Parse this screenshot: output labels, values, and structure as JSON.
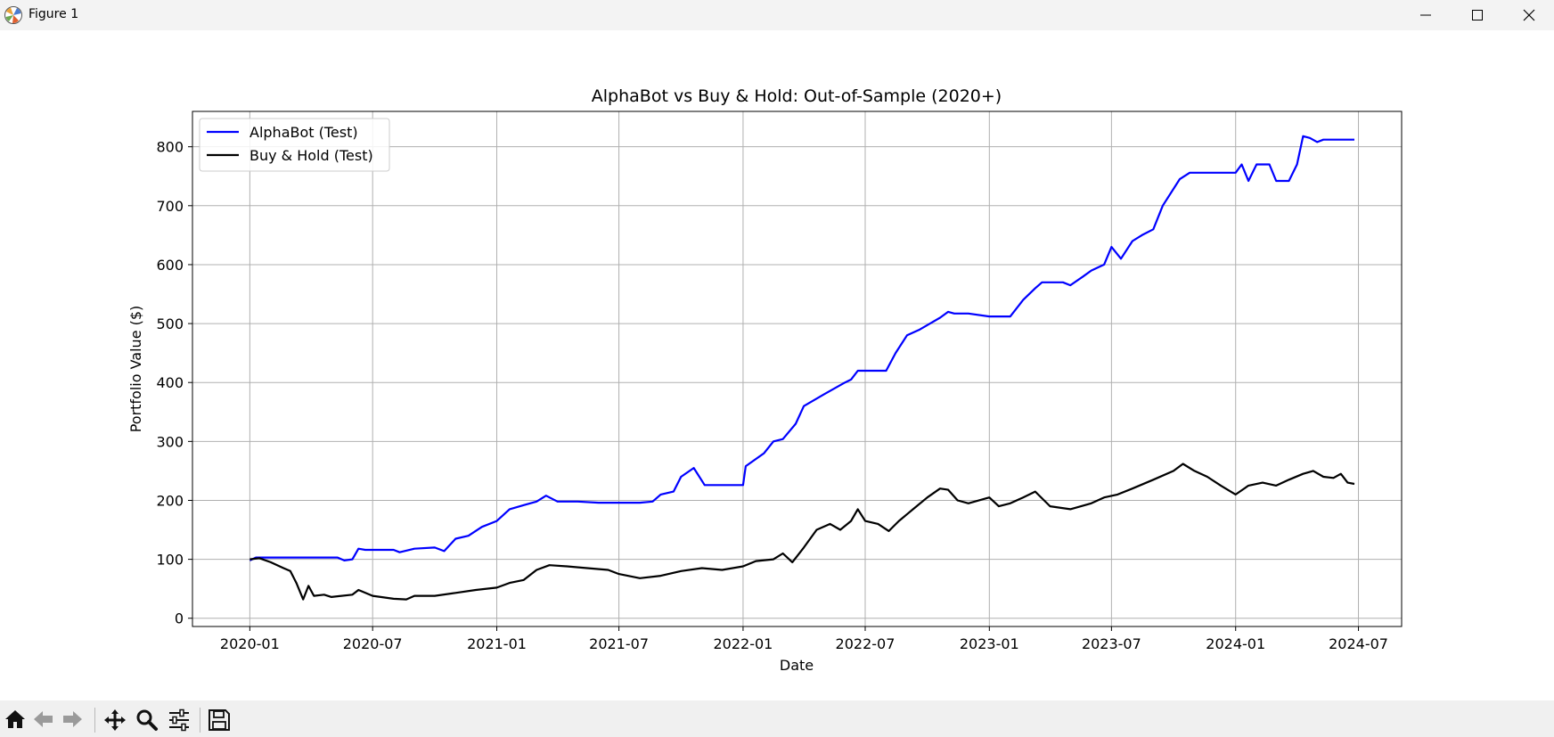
{
  "window": {
    "title": "Figure 1",
    "icons": {
      "app": "matplotlib-icon",
      "minimize": "minimize-icon",
      "maximize": "maximize-icon",
      "close": "close-icon"
    }
  },
  "toolbar": {
    "buttons": [
      "home-icon",
      "back-arrow-icon",
      "forward-arrow-icon",
      "pan-icon",
      "zoom-icon",
      "configure-subplots-icon",
      "save-icon"
    ]
  },
  "chart_data": {
    "type": "line",
    "title": "AlphaBot vs Buy & Hold: Out-of-Sample (2020+)",
    "xlabel": "Date",
    "ylabel": "Portfolio Value ($)",
    "x_ticks": [
      "2020-01",
      "2020-07",
      "2021-01",
      "2021-07",
      "2022-01",
      "2022-07",
      "2023-01",
      "2023-07",
      "2024-01",
      "2024-07"
    ],
    "y_ticks": [
      0,
      100,
      200,
      300,
      400,
      500,
      600,
      700,
      800
    ],
    "xlim": [
      "2019-10-08",
      "2024-09-03"
    ],
    "ylim": [
      -14,
      860
    ],
    "grid": true,
    "legend_position": "upper-left",
    "series": [
      {
        "name": "AlphaBot (Test)",
        "color": "#0000ff",
        "points": [
          [
            "2020-01-01",
            98
          ],
          [
            "2020-01-10",
            103
          ],
          [
            "2020-02-01",
            103
          ],
          [
            "2020-03-01",
            103
          ],
          [
            "2020-04-01",
            103
          ],
          [
            "2020-05-10",
            103
          ],
          [
            "2020-05-20",
            98
          ],
          [
            "2020-06-01",
            100
          ],
          [
            "2020-06-10",
            118
          ],
          [
            "2020-06-20",
            116
          ],
          [
            "2020-07-01",
            116
          ],
          [
            "2020-08-01",
            116
          ],
          [
            "2020-08-10",
            112
          ],
          [
            "2020-09-01",
            118
          ],
          [
            "2020-10-01",
            120
          ],
          [
            "2020-10-15",
            114
          ],
          [
            "2020-11-01",
            135
          ],
          [
            "2020-11-20",
            140
          ],
          [
            "2020-12-10",
            155
          ],
          [
            "2021-01-01",
            165
          ],
          [
            "2021-01-20",
            185
          ],
          [
            "2021-02-10",
            192
          ],
          [
            "2021-03-01",
            198
          ],
          [
            "2021-03-15",
            208
          ],
          [
            "2021-04-01",
            198
          ],
          [
            "2021-05-01",
            198
          ],
          [
            "2021-06-01",
            196
          ],
          [
            "2021-07-01",
            196
          ],
          [
            "2021-08-01",
            196
          ],
          [
            "2021-08-20",
            198
          ],
          [
            "2021-09-01",
            210
          ],
          [
            "2021-09-20",
            215
          ],
          [
            "2021-10-01",
            240
          ],
          [
            "2021-10-20",
            255
          ],
          [
            "2021-11-05",
            226
          ],
          [
            "2021-12-01",
            226
          ],
          [
            "2022-01-01",
            226
          ],
          [
            "2022-01-05",
            258
          ],
          [
            "2022-02-01",
            280
          ],
          [
            "2022-02-15",
            300
          ],
          [
            "2022-03-01",
            304
          ],
          [
            "2022-03-20",
            330
          ],
          [
            "2022-04-01",
            360
          ],
          [
            "2022-05-01",
            380
          ],
          [
            "2022-06-01",
            400
          ],
          [
            "2022-06-10",
            405
          ],
          [
            "2022-06-20",
            420
          ],
          [
            "2022-08-01",
            420
          ],
          [
            "2022-08-15",
            450
          ],
          [
            "2022-09-01",
            480
          ],
          [
            "2022-09-20",
            490
          ],
          [
            "2022-10-05",
            500
          ],
          [
            "2022-10-20",
            510
          ],
          [
            "2022-11-01",
            520
          ],
          [
            "2022-11-10",
            517
          ],
          [
            "2022-12-01",
            517
          ],
          [
            "2023-01-01",
            512
          ],
          [
            "2023-02-01",
            512
          ],
          [
            "2023-02-20",
            540
          ],
          [
            "2023-03-10",
            560
          ],
          [
            "2023-03-20",
            570
          ],
          [
            "2023-04-20",
            570
          ],
          [
            "2023-05-01",
            565
          ],
          [
            "2023-05-20",
            580
          ],
          [
            "2023-06-01",
            590
          ],
          [
            "2023-06-20",
            600
          ],
          [
            "2023-07-01",
            630
          ],
          [
            "2023-07-15",
            610
          ],
          [
            "2023-08-01",
            640
          ],
          [
            "2023-08-15",
            650
          ],
          [
            "2023-09-01",
            660
          ],
          [
            "2023-09-15",
            700
          ],
          [
            "2023-10-10",
            745
          ],
          [
            "2023-10-25",
            756
          ],
          [
            "2023-12-01",
            756
          ],
          [
            "2024-01-01",
            756
          ],
          [
            "2024-01-10",
            770
          ],
          [
            "2024-01-20",
            742
          ],
          [
            "2024-02-01",
            770
          ],
          [
            "2024-02-20",
            770
          ],
          [
            "2024-03-01",
            742
          ],
          [
            "2024-03-20",
            742
          ],
          [
            "2024-04-01",
            770
          ],
          [
            "2024-04-10",
            818
          ],
          [
            "2024-04-20",
            815
          ],
          [
            "2024-05-01",
            808
          ],
          [
            "2024-05-10",
            812
          ],
          [
            "2024-06-01",
            812
          ],
          [
            "2024-06-25",
            812
          ]
        ]
      },
      {
        "name": "Buy & Hold (Test)",
        "color": "#000000",
        "points": [
          [
            "2020-01-01",
            100
          ],
          [
            "2020-01-15",
            102
          ],
          [
            "2020-02-01",
            95
          ],
          [
            "2020-02-20",
            85
          ],
          [
            "2020-03-01",
            80
          ],
          [
            "2020-03-10",
            60
          ],
          [
            "2020-03-20",
            32
          ],
          [
            "2020-03-28",
            55
          ],
          [
            "2020-04-05",
            38
          ],
          [
            "2020-04-20",
            40
          ],
          [
            "2020-05-01",
            36
          ],
          [
            "2020-06-01",
            40
          ],
          [
            "2020-06-10",
            48
          ],
          [
            "2020-07-01",
            38
          ],
          [
            "2020-08-01",
            33
          ],
          [
            "2020-08-20",
            32
          ],
          [
            "2020-09-01",
            38
          ],
          [
            "2020-10-01",
            38
          ],
          [
            "2020-11-01",
            43
          ],
          [
            "2020-12-01",
            48
          ],
          [
            "2021-01-01",
            52
          ],
          [
            "2021-01-20",
            60
          ],
          [
            "2021-02-10",
            65
          ],
          [
            "2021-03-01",
            82
          ],
          [
            "2021-03-20",
            90
          ],
          [
            "2021-04-15",
            88
          ],
          [
            "2021-05-15",
            85
          ],
          [
            "2021-06-15",
            82
          ],
          [
            "2021-07-01",
            75
          ],
          [
            "2021-08-01",
            68
          ],
          [
            "2021-09-01",
            72
          ],
          [
            "2021-10-01",
            80
          ],
          [
            "2021-11-01",
            85
          ],
          [
            "2021-12-01",
            82
          ],
          [
            "2022-01-01",
            88
          ],
          [
            "2022-01-20",
            97
          ],
          [
            "2022-02-15",
            100
          ],
          [
            "2022-03-01",
            110
          ],
          [
            "2022-03-15",
            95
          ],
          [
            "2022-04-01",
            120
          ],
          [
            "2022-04-20",
            150
          ],
          [
            "2022-05-10",
            160
          ],
          [
            "2022-05-25",
            150
          ],
          [
            "2022-06-10",
            165
          ],
          [
            "2022-06-20",
            185
          ],
          [
            "2022-07-01",
            165
          ],
          [
            "2022-07-20",
            160
          ],
          [
            "2022-08-05",
            148
          ],
          [
            "2022-08-20",
            165
          ],
          [
            "2022-09-10",
            185
          ],
          [
            "2022-10-01",
            205
          ],
          [
            "2022-10-20",
            220
          ],
          [
            "2022-11-01",
            218
          ],
          [
            "2022-11-15",
            200
          ],
          [
            "2022-12-01",
            195
          ],
          [
            "2023-01-01",
            205
          ],
          [
            "2023-01-15",
            190
          ],
          [
            "2023-02-01",
            195
          ],
          [
            "2023-02-20",
            205
          ],
          [
            "2023-03-10",
            215
          ],
          [
            "2023-04-01",
            190
          ],
          [
            "2023-05-01",
            185
          ],
          [
            "2023-06-01",
            195
          ],
          [
            "2023-06-20",
            205
          ],
          [
            "2023-07-10",
            210
          ],
          [
            "2023-08-01",
            220
          ],
          [
            "2023-09-01",
            235
          ],
          [
            "2023-10-01",
            250
          ],
          [
            "2023-10-15",
            262
          ],
          [
            "2023-11-01",
            250
          ],
          [
            "2023-11-20",
            240
          ],
          [
            "2023-12-10",
            225
          ],
          [
            "2024-01-01",
            210
          ],
          [
            "2024-01-20",
            225
          ],
          [
            "2024-02-10",
            230
          ],
          [
            "2024-03-01",
            225
          ],
          [
            "2024-03-20",
            235
          ],
          [
            "2024-04-10",
            245
          ],
          [
            "2024-04-25",
            250
          ],
          [
            "2024-05-10",
            240
          ],
          [
            "2024-05-25",
            238
          ],
          [
            "2024-06-05",
            245
          ],
          [
            "2024-06-15",
            230
          ],
          [
            "2024-06-25",
            228
          ]
        ]
      }
    ]
  }
}
